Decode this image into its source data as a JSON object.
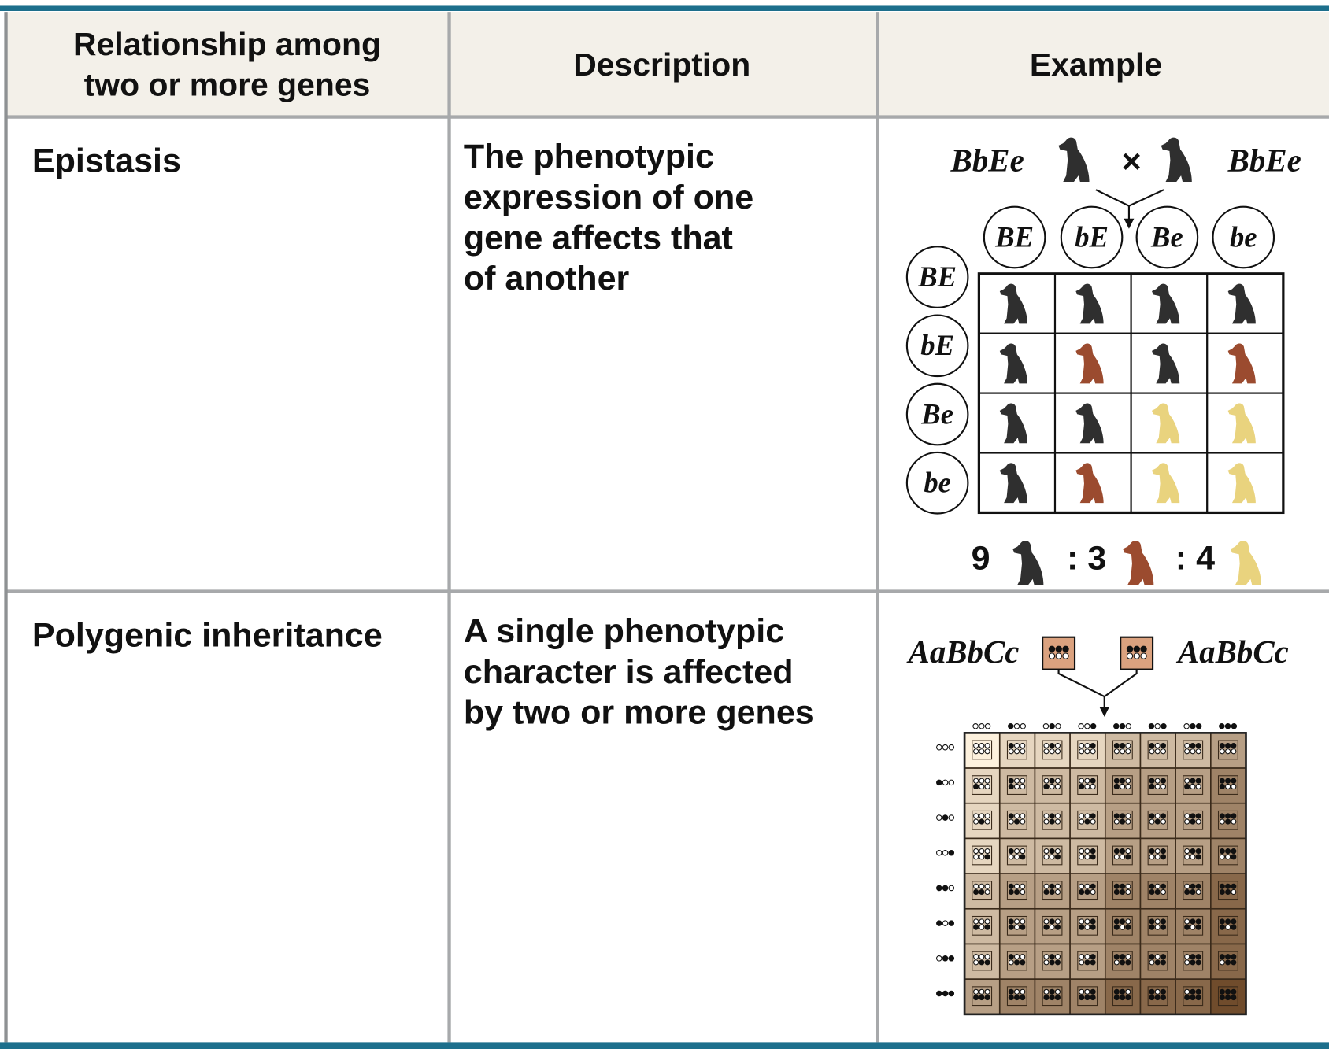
{
  "header": {
    "columns": [
      [
        "Relationship among",
        "two or more genes"
      ],
      [
        "Description"
      ],
      [
        "Example"
      ]
    ]
  },
  "rows": [
    {
      "relationship": "Epistasis",
      "description": [
        "The phenotypic",
        "expression of one",
        "gene affects that",
        "of another"
      ],
      "example": {
        "parent_genotypes": [
          "BbEe",
          "BbEe"
        ],
        "cross_symbol": "×",
        "column_gametes": [
          "BE",
          "bE",
          "Be",
          "be"
        ],
        "row_gametes": [
          "BE",
          "bE",
          "Be",
          "be"
        ],
        "ratio": [
          "9",
          ": 3",
          ": 4"
        ]
      }
    },
    {
      "relationship": "Polygenic inheritance",
      "description": [
        "A single phenotypic",
        "character is affected",
        "by two or more genes"
      ],
      "example": {
        "parent_genotypes": [
          "AaBbCc",
          "AaBbCc"
        ]
      }
    }
  ]
}
